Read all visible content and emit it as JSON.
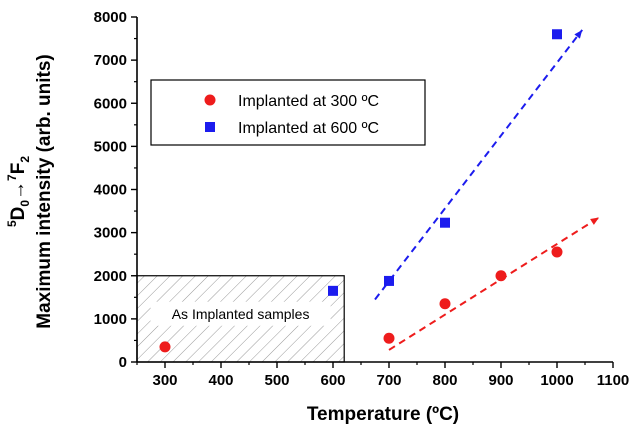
{
  "chart_data": {
    "type": "scatter",
    "xlabel": "Temperature (ºC)",
    "ylabel": {
      "prefix": "Maximum intensity (arb. units)",
      "transition": {
        "sup1": "5",
        "main1": "D",
        "sub1": "0",
        "arrow": "→",
        "sup2": "7",
        "main2": "F",
        "sub2": "2"
      }
    },
    "xlim": [
      250,
      1100
    ],
    "ylim": [
      0,
      8000
    ],
    "xticks": [
      300,
      400,
      500,
      600,
      700,
      800,
      900,
      1000,
      1100
    ],
    "yticks": [
      0,
      1000,
      2000,
      3000,
      4000,
      5000,
      6000,
      7000,
      8000
    ],
    "grid": false,
    "legend_position": "upper-left",
    "series": [
      {
        "name": "Implanted at 300 ºC",
        "marker": "circle",
        "color": "#ee1c1c",
        "x": [
          300,
          700,
          800,
          900,
          1000
        ],
        "y": [
          350,
          550,
          1350,
          2000,
          2550
        ],
        "trend": {
          "x": [
            700,
            1075
          ],
          "y": [
            280,
            3350
          ]
        }
      },
      {
        "name": "Implanted at 600 ºC",
        "marker": "square",
        "color": "#1c1cee",
        "x": [
          600,
          700,
          800,
          1000
        ],
        "y": [
          1650,
          1880,
          3230,
          7600
        ],
        "trend": {
          "x": [
            675,
            1045
          ],
          "y": [
            1450,
            7700
          ]
        }
      }
    ],
    "annotation": {
      "text": "As Implanted samples",
      "x_range": [
        250,
        620
      ],
      "y_range": [
        0,
        2000
      ]
    }
  }
}
